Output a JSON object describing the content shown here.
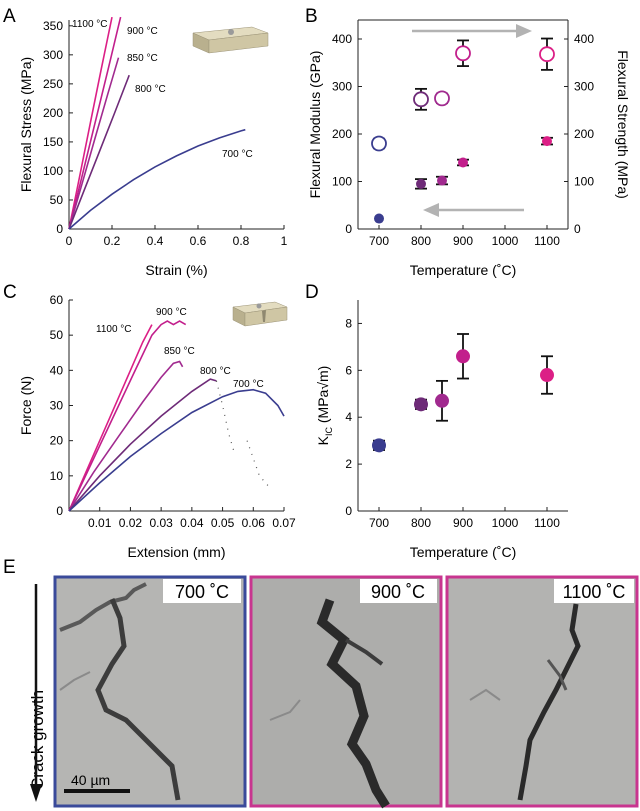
{
  "colors": {
    "t700": "#3a3d8f",
    "t800": "#6e2b78",
    "t850": "#a12a8f",
    "t900": "#c21f8c",
    "t1100": "#dc1f86",
    "arrow": "#b3b3b3",
    "border700": "#3a4a9a",
    "border900": "#c8358f",
    "border1100": "#c8358f",
    "specimen": "#cfc6a4"
  },
  "panel_letters": {
    "a": "A",
    "b": "B",
    "c": "C",
    "d": "D",
    "e": "E"
  },
  "panel_e": {
    "side_label": "Crack growth",
    "scale_bar": "40 µm",
    "image_labels": [
      "700 ˚C",
      "900 ˚C",
      "1100 ˚C"
    ]
  },
  "chart_data": [
    {
      "panel": "A",
      "type": "line",
      "title": "",
      "xlabel": "Strain (%)",
      "ylabel": "Flexural Stress (MPa)",
      "xlim": [
        0,
        1
      ],
      "ylim": [
        0,
        360
      ],
      "xticks": [
        0,
        0.2,
        0.4,
        0.6,
        0.8,
        1
      ],
      "xtick_labels": [
        "0",
        "0.2",
        "0.4",
        "0.6",
        "0.8",
        "1"
      ],
      "yticks": [
        0,
        50,
        100,
        150,
        200,
        250,
        300,
        350
      ],
      "ytick_labels": [
        "0",
        "50",
        "100",
        "150",
        "200",
        "250",
        "300",
        "350"
      ],
      "series": [
        {
          "name": "1100 °C",
          "color": "t1100",
          "x": [
            0,
            0.05,
            0.1,
            0.15,
            0.2
          ],
          "y": [
            0,
            92,
            184,
            276,
            365
          ]
        },
        {
          "name": "900 °C",
          "color": "t900",
          "x": [
            0,
            0.06,
            0.12,
            0.18,
            0.24
          ],
          "y": [
            0,
            90,
            181,
            272,
            365
          ]
        },
        {
          "name": "850 °C",
          "color": "t850",
          "x": [
            0,
            0.06,
            0.12,
            0.18,
            0.23
          ],
          "y": [
            0,
            77,
            155,
            232,
            295
          ]
        },
        {
          "name": "800 °C",
          "color": "t800",
          "x": [
            0,
            0.07,
            0.14,
            0.21,
            0.28
          ],
          "y": [
            0,
            66,
            132,
            198,
            265
          ]
        },
        {
          "name": "700 °C",
          "color": "t700",
          "x": [
            0,
            0.1,
            0.2,
            0.3,
            0.4,
            0.5,
            0.6,
            0.7,
            0.8,
            0.82
          ],
          "y": [
            0,
            32,
            60,
            85,
            107,
            126,
            143,
            157,
            169,
            171
          ]
        }
      ]
    },
    {
      "panel": "B",
      "type": "scatter",
      "title": "",
      "xlabel": "Temperature (˚C)",
      "ylabel": "Flexural Modulus (GPa)",
      "y2label": "Flexural Strength (MPa)",
      "xlim": [
        650,
        1150
      ],
      "ylim": [
        0,
        440
      ],
      "xticks": [
        700,
        800,
        900,
        1000,
        1100
      ],
      "xtick_labels": [
        "700",
        "800",
        "900",
        "1000",
        "1100"
      ],
      "yticks": [
        0,
        100,
        200,
        300,
        400
      ],
      "ytick_labels": [
        "0",
        "100",
        "200",
        "300",
        "400"
      ],
      "y2tick_labels": [
        "0",
        "100",
        "200",
        "300",
        "400"
      ],
      "series": [
        {
          "name": "Flexural Modulus",
          "style": "filled",
          "axis": "left",
          "x": [
            700,
            800,
            850,
            900,
            1100
          ],
          "values": [
            22,
            95,
            102,
            140,
            185
          ],
          "errors": [
            0,
            10,
            8,
            6,
            7
          ],
          "colors": [
            "t700",
            "t800",
            "t850",
            "t900",
            "t1100"
          ]
        },
        {
          "name": "Flexural Strength",
          "style": "open",
          "axis": "right",
          "x": [
            700,
            800,
            850,
            900,
            1100
          ],
          "values": [
            180,
            273,
            275,
            370,
            368
          ],
          "errors": [
            10,
            22,
            10,
            27,
            33
          ],
          "colors": [
            "t700",
            "t800",
            "t850",
            "t900",
            "t1100"
          ]
        }
      ],
      "annotations": [
        "arrow right near top toward strength axis",
        "arrow left near bottom toward modulus axis"
      ]
    },
    {
      "panel": "C",
      "type": "line",
      "title": "",
      "xlabel": "Extension (mm)",
      "ylabel": "Force (N)",
      "xlim": [
        0,
        0.07
      ],
      "ylim": [
        0,
        60
      ],
      "xticks": [
        0.01,
        0.02,
        0.03,
        0.04,
        0.05,
        0.06,
        0.07
      ],
      "xtick_labels": [
        "0.01",
        "0.02",
        "0.03",
        "0.04",
        "0.05",
        "0.06",
        "0.07"
      ],
      "yticks": [
        0,
        10,
        20,
        30,
        40,
        50,
        60
      ],
      "ytick_labels": [
        "0",
        "10",
        "20",
        "30",
        "40",
        "50",
        "60"
      ],
      "series": [
        {
          "name": "1100 °C",
          "color": "t1100",
          "x": [
            0,
            0.006,
            0.012,
            0.018,
            0.024,
            0.027
          ],
          "y": [
            0,
            12,
            24,
            36,
            48,
            53
          ]
        },
        {
          "name": "900 °C",
          "color": "t900",
          "x": [
            0,
            0.007,
            0.014,
            0.021,
            0.027,
            0.03,
            0.032,
            0.034,
            0.036,
            0.038
          ],
          "y": [
            0,
            13,
            26,
            39,
            50,
            53,
            54,
            53,
            54,
            53
          ]
        },
        {
          "name": "850 °C",
          "color": "t850",
          "x": [
            0,
            0.008,
            0.016,
            0.024,
            0.03,
            0.034,
            0.036,
            0.037
          ],
          "y": [
            0,
            11,
            21,
            31,
            38,
            42,
            42.5,
            41
          ]
        },
        {
          "name": "800 °C",
          "color": "t800",
          "x": [
            0,
            0.01,
            0.02,
            0.03,
            0.04,
            0.046,
            0.048
          ],
          "y": [
            0,
            10,
            19,
            27,
            34,
            37.5,
            37
          ]
        },
        {
          "name": "700 °C",
          "color": "t700",
          "x": [
            0,
            0.01,
            0.02,
            0.03,
            0.04,
            0.05,
            0.055,
            0.06,
            0.064,
            0.068,
            0.07
          ],
          "y": [
            0,
            8,
            15.5,
            22,
            28,
            32.5,
            34,
            34.5,
            33.5,
            30,
            27
          ]
        },
        {
          "name": "800 °C tail",
          "style": "dotted",
          "color": "#555555",
          "x": [
            0.048,
            0.05,
            0.052,
            0.054
          ],
          "y": [
            37,
            30,
            22,
            16
          ]
        },
        {
          "name": "700 °C tail",
          "style": "dotted",
          "color": "#555555",
          "x": [
            0.058,
            0.062,
            0.066
          ],
          "y": [
            20,
            10,
            6
          ]
        }
      ]
    },
    {
      "panel": "D",
      "type": "scatter",
      "title": "",
      "xlabel": "Temperature (˚C)",
      "ylabel": "KIC (MPa√m)",
      "ylabel_main": "K",
      "ylabel_sub": "IC",
      "ylabel_rest": " (MPa√m)",
      "xlim": [
        650,
        1150
      ],
      "ylim": [
        0,
        9
      ],
      "xticks": [
        700,
        800,
        900,
        1000,
        1100
      ],
      "xtick_labels": [
        "700",
        "800",
        "900",
        "1000",
        "1100"
      ],
      "yticks": [
        0,
        2,
        4,
        6,
        8
      ],
      "ytick_labels": [
        "0",
        "2",
        "4",
        "6",
        "8"
      ],
      "series": [
        {
          "name": "KIC",
          "style": "filled",
          "x": [
            700,
            800,
            850,
            900,
            1100
          ],
          "values": [
            2.8,
            4.55,
            4.7,
            6.6,
            5.8
          ],
          "errors": [
            0.2,
            0.2,
            0.85,
            0.95,
            0.8
          ],
          "colors": [
            "t700",
            "t800",
            "t850",
            "t900",
            "t1100"
          ]
        }
      ]
    }
  ]
}
